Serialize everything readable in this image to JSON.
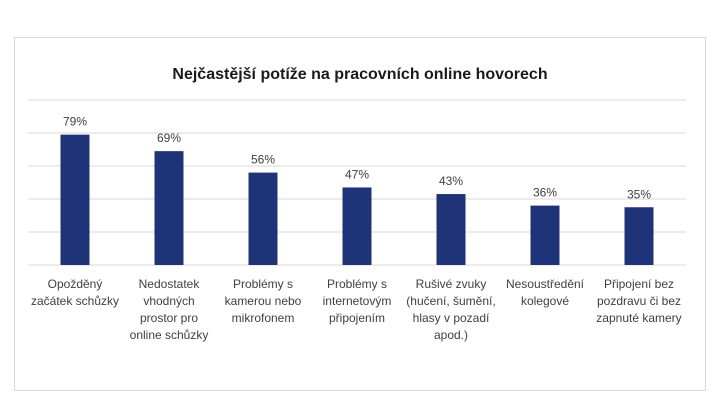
{
  "chart_data": {
    "type": "bar",
    "title": "Nejčastější potíže na pracovních online hovorech",
    "xlabel": "",
    "ylabel": "",
    "ylim": [
      0,
      100
    ],
    "grid": true,
    "legend": "none",
    "bar_color": "#1f3478",
    "categories": [
      [
        "Opožděný",
        "začátek schůzky"
      ],
      [
        "Nedostatek",
        "vhodných",
        "prostor pro",
        "online schůzky"
      ],
      [
        "Problémy s",
        "kamerou nebo",
        "mikrofonem"
      ],
      [
        "Problémy s",
        "internetovým",
        "připojením"
      ],
      [
        "Rušivé zvuky",
        "(hučení, šumění,",
        "hlasy v pozadí",
        "apod.)"
      ],
      [
        "Nesoustředění",
        "kolegové"
      ],
      [
        "Připojení bez",
        "pozdravu či bez",
        "zapnuté kamery"
      ]
    ],
    "values": [
      79,
      69,
      56,
      47,
      43,
      36,
      35
    ],
    "value_labels": [
      "79%",
      "69%",
      "56%",
      "47%",
      "43%",
      "36%",
      "35%"
    ]
  }
}
